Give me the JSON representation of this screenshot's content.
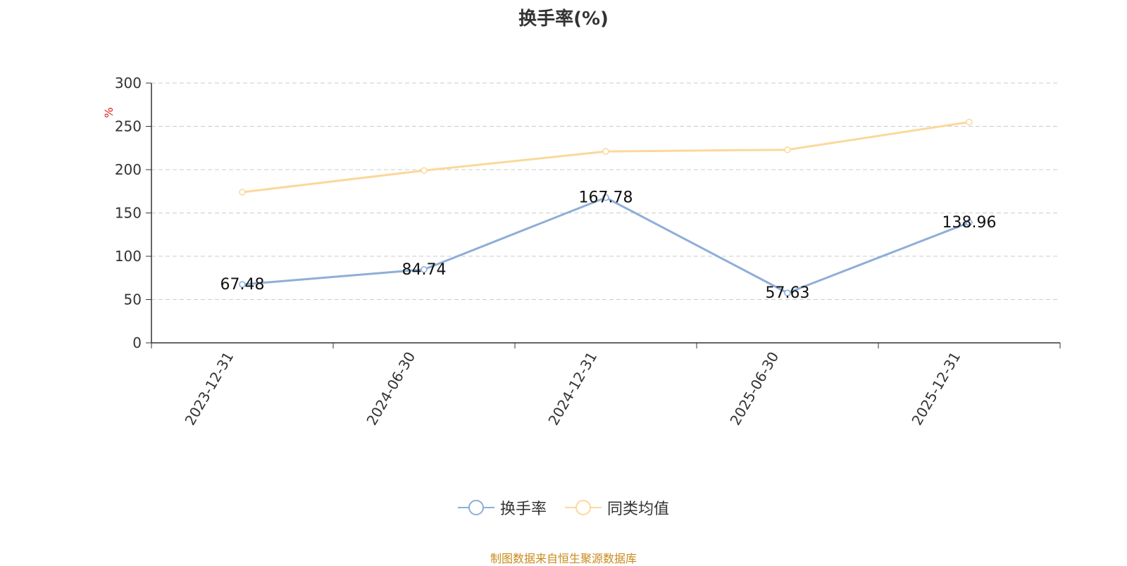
{
  "chart_data": {
    "type": "line",
    "title": "换手率(%)",
    "unit_label": "%",
    "categories": [
      "2023-12-31",
      "2024-06-30",
      "2024-12-31",
      "2025-06-30",
      "2025-12-31"
    ],
    "ylim": [
      0,
      300
    ],
    "yticks": [
      "0",
      "50",
      "100",
      "150",
      "200",
      "250",
      "300"
    ],
    "grid": true,
    "legend_position": "bottom-center",
    "series": [
      {
        "name": "换手率",
        "color": "#8eaed8",
        "values": [
          67.48,
          84.74,
          167.78,
          57.63,
          138.96
        ],
        "data_labels": [
          "67.48",
          "84.74",
          "167.78",
          "57.63",
          "138.96"
        ]
      },
      {
        "name": "同类均值",
        "color": "#fbd89a",
        "values": [
          174,
          199,
          221,
          223,
          255
        ]
      }
    ]
  },
  "footer": {
    "source": "制图数据来自恒生聚源数据库"
  }
}
